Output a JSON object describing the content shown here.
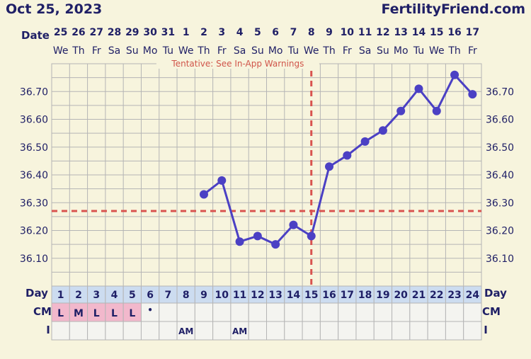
{
  "header": {
    "date": "Oct 25, 2023",
    "brand": "FertilityFriend.com"
  },
  "row_labels": {
    "date": "Date",
    "day": "Day",
    "cm": "CM",
    "intercourse": "I"
  },
  "chart_data": {
    "type": "line",
    "annotation": "Tentative: See In-App Warnings",
    "dates": [
      "25",
      "26",
      "27",
      "28",
      "29",
      "30",
      "31",
      "1",
      "2",
      "3",
      "4",
      "5",
      "6",
      "7",
      "8",
      "9",
      "10",
      "11",
      "12",
      "13",
      "14",
      "15",
      "16",
      "17"
    ],
    "weekdays": [
      "We",
      "Th",
      "Fr",
      "Sa",
      "Su",
      "Mo",
      "Tu",
      "We",
      "Th",
      "Fr",
      "Sa",
      "Su",
      "Mo",
      "Tu",
      "We",
      "Th",
      "Fr",
      "Sa",
      "Su",
      "Mo",
      "Tu",
      "We",
      "Th",
      "Fr"
    ],
    "cycle_days": [
      1,
      2,
      3,
      4,
      5,
      6,
      7,
      8,
      9,
      10,
      11,
      12,
      13,
      14,
      15,
      16,
      17,
      18,
      19,
      20,
      21,
      22,
      23,
      24
    ],
    "y_ticks": [
      "36.10",
      "36.20",
      "36.30",
      "36.40",
      "36.50",
      "36.60",
      "36.70"
    ],
    "ylim": [
      36.0,
      36.8
    ],
    "coverline": 36.27,
    "ovulation_day": 15,
    "temps": [
      null,
      null,
      null,
      null,
      null,
      null,
      null,
      null,
      36.33,
      36.38,
      36.16,
      36.18,
      36.15,
      36.22,
      36.18,
      36.43,
      36.47,
      36.52,
      36.56,
      36.63,
      36.71,
      36.63,
      36.76,
      36.69
    ],
    "cm": [
      "L",
      "M",
      "L",
      "L",
      "L",
      "•",
      "",
      "",
      "",
      "",
      "",
      "",
      "",
      "",
      "",
      "",
      "",
      "",
      "",
      "",
      "",
      "",
      "",
      ""
    ],
    "intercourse": [
      "",
      "",
      "",
      "",
      "",
      "",
      "",
      "AM",
      "",
      "",
      "AM",
      "",
      "",
      "",
      "",
      "",
      "",
      "",
      "",
      "",
      "",
      "",
      "",
      ""
    ],
    "grid": true,
    "colors": {
      "line": "#4b40c4",
      "coverline": "#d9534f",
      "menses": "#f2b8cc",
      "grid": "#b5b5b5"
    }
  }
}
